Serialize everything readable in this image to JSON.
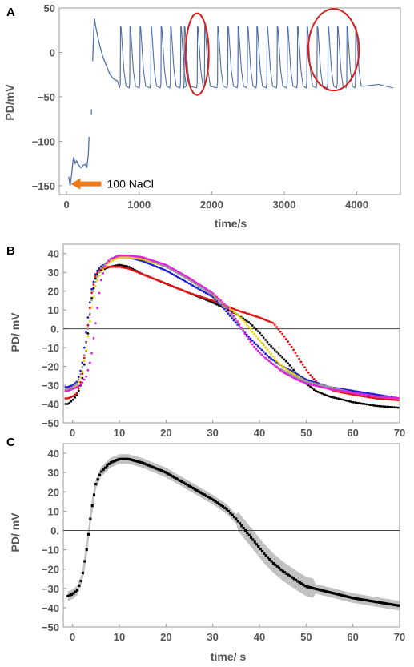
{
  "chart_data": [
    {
      "panel": "A",
      "type": "line",
      "xlabel": "time/s",
      "ylabel": "PD/mV",
      "xlim": [
        -100,
        4600
      ],
      "ylim": [
        -160,
        50
      ],
      "xticks": [
        "0",
        "1000",
        "2000",
        "3000",
        "4000"
      ],
      "xtick_values": [
        0,
        1000,
        2000,
        3000,
        4000
      ],
      "yticks": [
        "50",
        "0",
        "−50",
        "−100",
        "−150"
      ],
      "ytick_values": [
        50,
        0,
        -50,
        -100,
        -150
      ],
      "annotation": "100 NaCl",
      "annotation_at": {
        "x": 60,
        "y": -148
      },
      "spike_times": [
        740,
        870,
        1010,
        1160,
        1300,
        1430,
        1570,
        1620,
        1800,
        1900,
        2080,
        2220,
        2360,
        2490,
        2620,
        2760,
        2900,
        3040,
        3180,
        3310,
        3450,
        3600,
        3730,
        3860,
        3980
      ],
      "highlight_ellipses": [
        {
          "x_center": 1800,
          "x_halfwidth": 160,
          "y_center": -2,
          "y_halfheight": 46
        },
        {
          "x_center": 3680,
          "x_halfwidth": 350,
          "y_center": 3,
          "y_halfheight": 46
        }
      ],
      "series": [
        {
          "color": "#4f6fa8",
          "segments": [
            [
              [
                30,
                -140
              ],
              [
                50,
                -150
              ],
              [
                70,
                -138
              ],
              [
                90,
                -122
              ],
              [
                100,
                -118
              ],
              [
                120,
                -125
              ],
              [
                140,
                -122
              ],
              [
                160,
                -126
              ],
              [
                180,
                -128
              ],
              [
                200,
                -130
              ],
              [
                230,
                -127
              ],
              [
                260,
                -126
              ],
              [
                280,
                -130
              ],
              [
                300,
                -115
              ],
              [
                310,
                -95
              ]
            ],
            [
              [
                340,
                -70
              ],
              [
                345,
                -64
              ]
            ],
            [
              [
                360,
                -10
              ],
              [
                375,
                25
              ],
              [
                385,
                38
              ],
              [
                400,
                30
              ],
              [
                450,
                10
              ],
              [
                500,
                -5
              ],
              [
                550,
                -15
              ],
              [
                600,
                -25
              ],
              [
                650,
                -30
              ],
              [
                700,
                -32
              ]
            ]
          ]
        }
      ]
    },
    {
      "panel": "B",
      "type": "scatter",
      "xlabel": "",
      "ylabel": "PD/ mV",
      "xlim": [
        -2,
        70
      ],
      "ylim": [
        -50,
        45
      ],
      "xticks": [
        "0",
        "10",
        "20",
        "30",
        "40",
        "50",
        "60",
        "70"
      ],
      "xtick_values": [
        0,
        10,
        20,
        30,
        40,
        50,
        60,
        70
      ],
      "yticks": [
        "40",
        "30",
        "20",
        "10",
        "0.",
        "−10",
        "−20",
        "−30",
        "−40",
        "−50"
      ],
      "ytick_values": [
        40,
        30,
        20,
        10,
        0,
        -10,
        -20,
        -30,
        -40,
        -50
      ],
      "hline": 0,
      "series": [
        {
          "color": "#000000",
          "points": [
            [
              -1,
              -40
            ],
            [
              0,
              -38
            ],
            [
              1,
              -35
            ],
            [
              2,
              -28
            ],
            [
              3,
              -10
            ],
            [
              4,
              15
            ],
            [
              5,
              28
            ],
            [
              6,
              31
            ],
            [
              8,
              33
            ],
            [
              10,
              34
            ],
            [
              12,
              33
            ],
            [
              15,
              29
            ],
            [
              20,
              24
            ],
            [
              25,
              19
            ],
            [
              30,
              14
            ],
            [
              35,
              8
            ],
            [
              38,
              3
            ],
            [
              40,
              -2
            ],
            [
              42,
              -8
            ],
            [
              44,
              -13
            ],
            [
              46,
              -18
            ],
            [
              48,
              -24
            ],
            [
              50,
              -29
            ],
            [
              52,
              -33
            ],
            [
              55,
              -36
            ],
            [
              60,
              -39
            ],
            [
              65,
              -41
            ],
            [
              70,
              -42
            ]
          ]
        },
        {
          "color": "#e01010",
          "points": [
            [
              -1,
              -37
            ],
            [
              0,
              -36
            ],
            [
              1,
              -34
            ],
            [
              2,
              -26
            ],
            [
              3,
              -5
            ],
            [
              4,
              18
            ],
            [
              5,
              29
            ],
            [
              6,
              32
            ],
            [
              8,
              33
            ],
            [
              10,
              33
            ],
            [
              12,
              32
            ],
            [
              15,
              29
            ],
            [
              20,
              24
            ],
            [
              25,
              19
            ],
            [
              30,
              15
            ],
            [
              35,
              10
            ],
            [
              40,
              6
            ],
            [
              43,
              3
            ],
            [
              45,
              -3
            ],
            [
              47,
              -10
            ],
            [
              49,
              -18
            ],
            [
              51,
              -25
            ],
            [
              53,
              -30
            ],
            [
              56,
              -33
            ],
            [
              60,
              -35
            ],
            [
              65,
              -37
            ],
            [
              70,
              -38
            ]
          ]
        },
        {
          "color": "#1a1ad8",
          "points": [
            [
              -1,
              -31
            ],
            [
              0,
              -30
            ],
            [
              1,
              -28
            ],
            [
              2,
              -20
            ],
            [
              3,
              0
            ],
            [
              4,
              20
            ],
            [
              5,
              30
            ],
            [
              6,
              33
            ],
            [
              8,
              36
            ],
            [
              10,
              38
            ],
            [
              12,
              38
            ],
            [
              15,
              36
            ],
            [
              20,
              31
            ],
            [
              25,
              24
            ],
            [
              30,
              17
            ],
            [
              32,
              12
            ],
            [
              35,
              3
            ],
            [
              38,
              -5
            ],
            [
              40,
              -10
            ],
            [
              42,
              -15
            ],
            [
              45,
              -20
            ],
            [
              48,
              -24
            ],
            [
              50,
              -27
            ],
            [
              55,
              -31
            ],
            [
              60,
              -33
            ],
            [
              65,
              -35
            ],
            [
              70,
              -37
            ]
          ]
        },
        {
          "color": "#e8d000",
          "points": [
            [
              -1,
              -33
            ],
            [
              0,
              -32
            ],
            [
              1,
              -30
            ],
            [
              2,
              -24
            ],
            [
              3,
              -10
            ],
            [
              4,
              10
            ],
            [
              5,
              24
            ],
            [
              6,
              30
            ],
            [
              8,
              36
            ],
            [
              10,
              38
            ],
            [
              12,
              38
            ],
            [
              15,
              37
            ],
            [
              20,
              33
            ],
            [
              25,
              26
            ],
            [
              30,
              18
            ],
            [
              33,
              12
            ],
            [
              36,
              6
            ],
            [
              38,
              0
            ],
            [
              40,
              -6
            ],
            [
              42,
              -12
            ],
            [
              44,
              -18
            ],
            [
              46,
              -22
            ],
            [
              48,
              -25
            ],
            [
              50,
              -28
            ],
            [
              55,
              -32
            ],
            [
              60,
              -34
            ],
            [
              65,
              -36
            ],
            [
              70,
              -37
            ]
          ]
        },
        {
          "color": "#9a9a9a",
          "points": [
            [
              -1,
              -32
            ],
            [
              0,
              -31
            ],
            [
              1,
              -29
            ],
            [
              2,
              -22
            ],
            [
              3,
              -6
            ],
            [
              4,
              14
            ],
            [
              5,
              26
            ],
            [
              6,
              32
            ],
            [
              8,
              37
            ],
            [
              10,
              39
            ],
            [
              12,
              39
            ],
            [
              15,
              38
            ],
            [
              20,
              33
            ],
            [
              25,
              26
            ],
            [
              30,
              18
            ],
            [
              33,
              10
            ],
            [
              35,
              4
            ],
            [
              37,
              -3
            ],
            [
              39,
              -10
            ],
            [
              41,
              -15
            ],
            [
              43,
              -19
            ],
            [
              45,
              -22
            ],
            [
              48,
              -26
            ],
            [
              50,
              -28
            ],
            [
              55,
              -31
            ],
            [
              60,
              -34
            ],
            [
              65,
              -36
            ],
            [
              70,
              -37
            ]
          ]
        },
        {
          "color": "#e020e0",
          "points": [
            [
              -1,
              -33
            ],
            [
              0,
              -32
            ],
            [
              1,
              -31
            ],
            [
              2,
              -29
            ],
            [
              3,
              -25
            ],
            [
              4,
              -15
            ],
            [
              5,
              5
            ],
            [
              6,
              25
            ],
            [
              7,
              34
            ],
            [
              8,
              37
            ],
            [
              10,
              39
            ],
            [
              12,
              39
            ],
            [
              15,
              38
            ],
            [
              20,
              34
            ],
            [
              25,
              27
            ],
            [
              30,
              19
            ],
            [
              33,
              12
            ],
            [
              35,
              5
            ],
            [
              37,
              -3
            ],
            [
              39,
              -10
            ],
            [
              41,
              -15
            ],
            [
              43,
              -19
            ],
            [
              45,
              -23
            ],
            [
              48,
              -27
            ],
            [
              50,
              -29
            ],
            [
              55,
              -32
            ],
            [
              60,
              -34
            ],
            [
              65,
              -36
            ],
            [
              70,
              -37
            ]
          ]
        }
      ]
    },
    {
      "panel": "C",
      "type": "scatter",
      "xlabel": "time/ s",
      "ylabel": "PD/ mV",
      "xlim": [
        -2,
        70
      ],
      "ylim": [
        -50,
        45
      ],
      "xticks": [
        "0",
        "10",
        "20",
        "30",
        "40",
        "50",
        "60",
        "70"
      ],
      "xtick_values": [
        0,
        10,
        20,
        30,
        40,
        50,
        60,
        70
      ],
      "yticks": [
        "40",
        "30",
        "20",
        "10",
        "0.",
        "−10",
        "−20",
        "−30",
        "−40",
        "−50"
      ],
      "ytick_values": [
        40,
        30,
        20,
        10,
        0,
        -10,
        -20,
        -30,
        -40,
        -50
      ],
      "hline": 0,
      "series": [
        {
          "color": "#000000",
          "points": [
            [
              -1,
              -34
            ],
            [
              0,
              -33
            ],
            [
              1,
              -31
            ],
            [
              2,
              -25
            ],
            [
              3,
              -10
            ],
            [
              4,
              10
            ],
            [
              5,
              24
            ],
            [
              6,
              30
            ],
            [
              8,
              35
            ],
            [
              10,
              37
            ],
            [
              12,
              37
            ],
            [
              15,
              35
            ],
            [
              20,
              30
            ],
            [
              25,
              23
            ],
            [
              30,
              16
            ],
            [
              33,
              11
            ],
            [
              35,
              6
            ],
            [
              37,
              0
            ],
            [
              39,
              -6
            ],
            [
              41,
              -12
            ],
            [
              43,
              -17
            ],
            [
              45,
              -21
            ],
            [
              48,
              -26
            ],
            [
              50,
              -29
            ],
            [
              55,
              -32
            ],
            [
              60,
              -35
            ],
            [
              65,
              -37
            ],
            [
              70,
              -39
            ]
          ]
        }
      ]
    }
  ]
}
